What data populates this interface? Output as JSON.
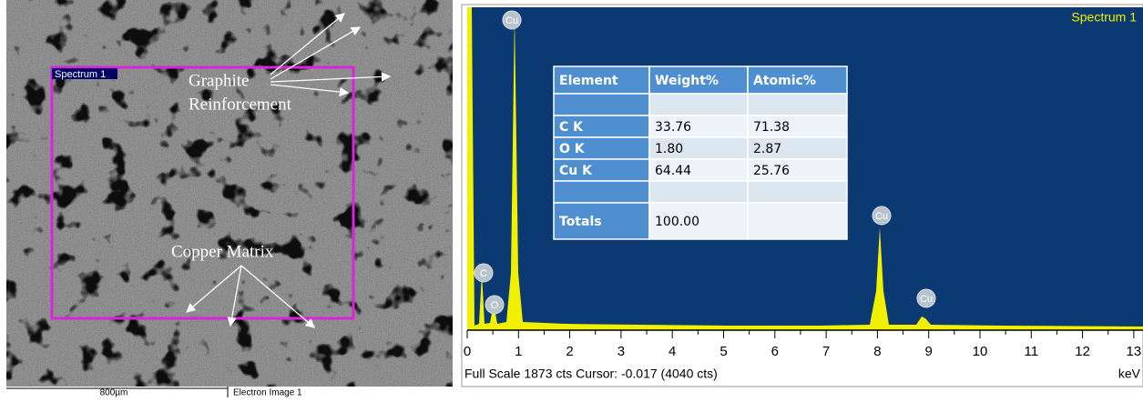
{
  "sem_image": {
    "region_label": "Spectrum 1",
    "annotations": [
      "Graphite",
      "Reinforcement",
      "Copper Matrix"
    ],
    "scale_bar": "800µm",
    "image_name": "Electron Image 1"
  },
  "spectrum": {
    "title": "Spectrum 1",
    "peak_labels": [
      "Cu",
      "C",
      "O",
      "Cu",
      "Cu"
    ],
    "xticks": [
      "0",
      "1",
      "2",
      "3",
      "4",
      "5",
      "6",
      "7",
      "8",
      "9",
      "10",
      "11",
      "12",
      "13"
    ],
    "footer": "Full Scale 1873 cts Cursor: -0.017  (4040 cts)",
    "unit": "keV"
  },
  "table": {
    "header": [
      "Element",
      "Weight%",
      "Atomic%"
    ],
    "rows": [
      [
        "C K",
        "33.76",
        "71.38"
      ],
      [
        "O K",
        "1.80",
        "2.87"
      ],
      [
        "Cu K",
        "64.44",
        "25.76"
      ]
    ],
    "totals": [
      "Totals",
      "100.00"
    ]
  }
}
